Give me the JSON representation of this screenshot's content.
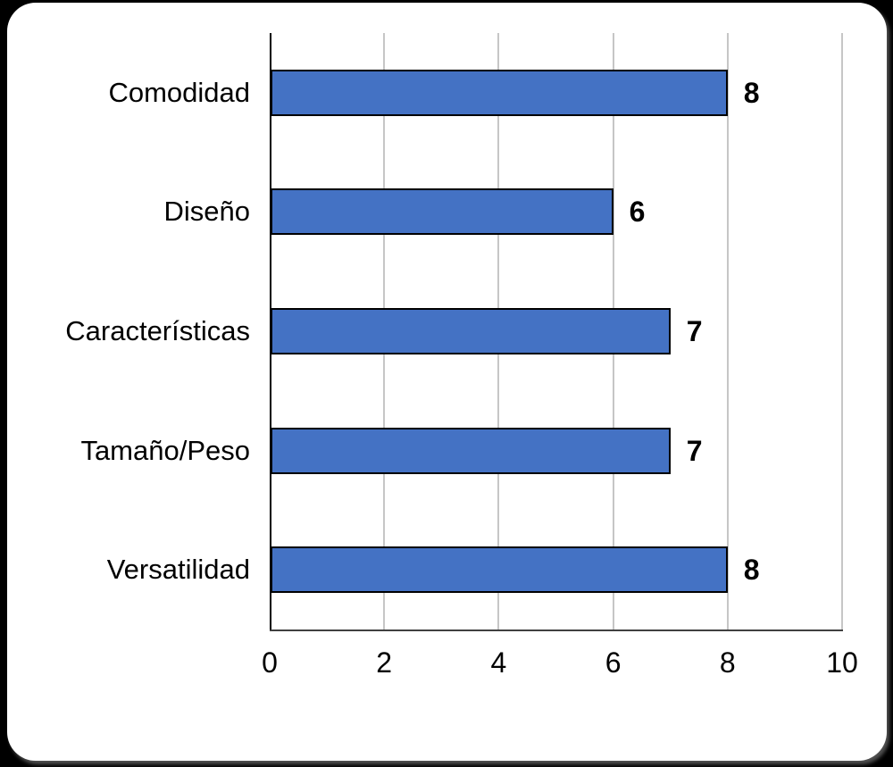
{
  "chart_data": {
    "type": "bar",
    "orientation": "horizontal",
    "title": "",
    "categories": [
      "Comodidad",
      "Diseño",
      "Características",
      "Tamaño/Peso",
      "Versatilidad"
    ],
    "values": [
      8,
      6,
      7,
      7,
      8
    ],
    "value_labels": [
      "8",
      "6",
      "7",
      "7",
      "8"
    ],
    "x_ticks": [
      "0",
      "2",
      "4",
      "6",
      "8",
      "10"
    ],
    "xlim": [
      0,
      10
    ],
    "grid": true,
    "legend": false,
    "colors": {
      "bar_fill": "#4472C4",
      "bar_border": "#000000",
      "gridline": "#C6C6C6",
      "y_axis_line": "#000000",
      "x_axis_line": "#404040",
      "text": "#000000",
      "card_background": "#FFFFFF",
      "page_background": "#000000"
    }
  }
}
